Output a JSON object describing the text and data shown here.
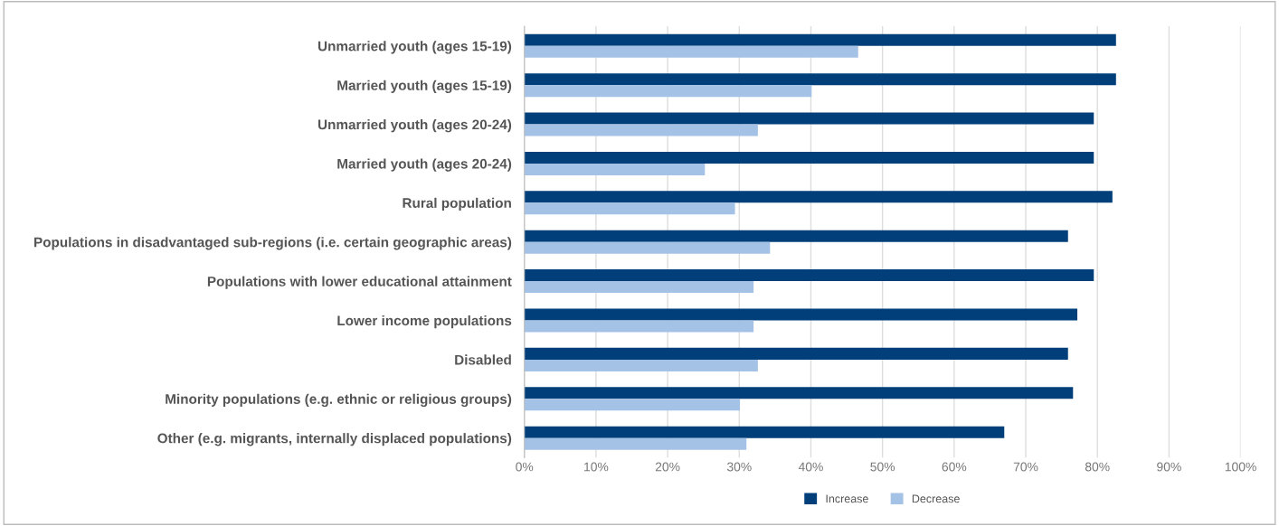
{
  "chart_data": {
    "type": "bar",
    "orientation": "horizontal",
    "categories": [
      "Unmarried youth (ages 15-19)",
      "Married youth (ages 15-19)",
      "Unmarried youth (ages 20-24)",
      "Married youth (ages 20-24)",
      "Rural population",
      "Populations in disadvantaged sub-regions (i.e. certain geographic areas)",
      "Populations with lower educational attainment",
      "Lower income populations",
      "Disabled",
      "Minority populations (e.g. ethnic or religious groups)",
      "Other (e.g. migrants, internally displaced populations)"
    ],
    "series": [
      {
        "name": "Increase",
        "color": "#003f7a",
        "values": [
          82.6,
          82.6,
          79.5,
          79.5,
          82.1,
          75.9,
          79.5,
          77.2,
          75.9,
          76.6,
          67.0
        ]
      },
      {
        "name": "Decrease",
        "color": "#a4c2e6",
        "values": [
          46.6,
          40.1,
          32.6,
          25.2,
          29.4,
          34.3,
          32.0,
          32.0,
          32.6,
          30.1,
          31.0
        ]
      }
    ],
    "xlim": [
      0,
      100
    ],
    "xticks": [
      {
        "value": 0,
        "label": "0%"
      },
      {
        "value": 10,
        "label": "10%"
      },
      {
        "value": 20,
        "label": "20%"
      },
      {
        "value": 30,
        "label": "30%"
      },
      {
        "value": 40,
        "label": "40%"
      },
      {
        "value": 50,
        "label": "50%"
      },
      {
        "value": 60,
        "label": "60%"
      },
      {
        "value": 70,
        "label": "70%"
      },
      {
        "value": 80,
        "label": "80%"
      },
      {
        "value": 90,
        "label": "90%"
      },
      {
        "value": 100,
        "label": "100%"
      }
    ],
    "grid": "x",
    "legend": "bottom"
  }
}
